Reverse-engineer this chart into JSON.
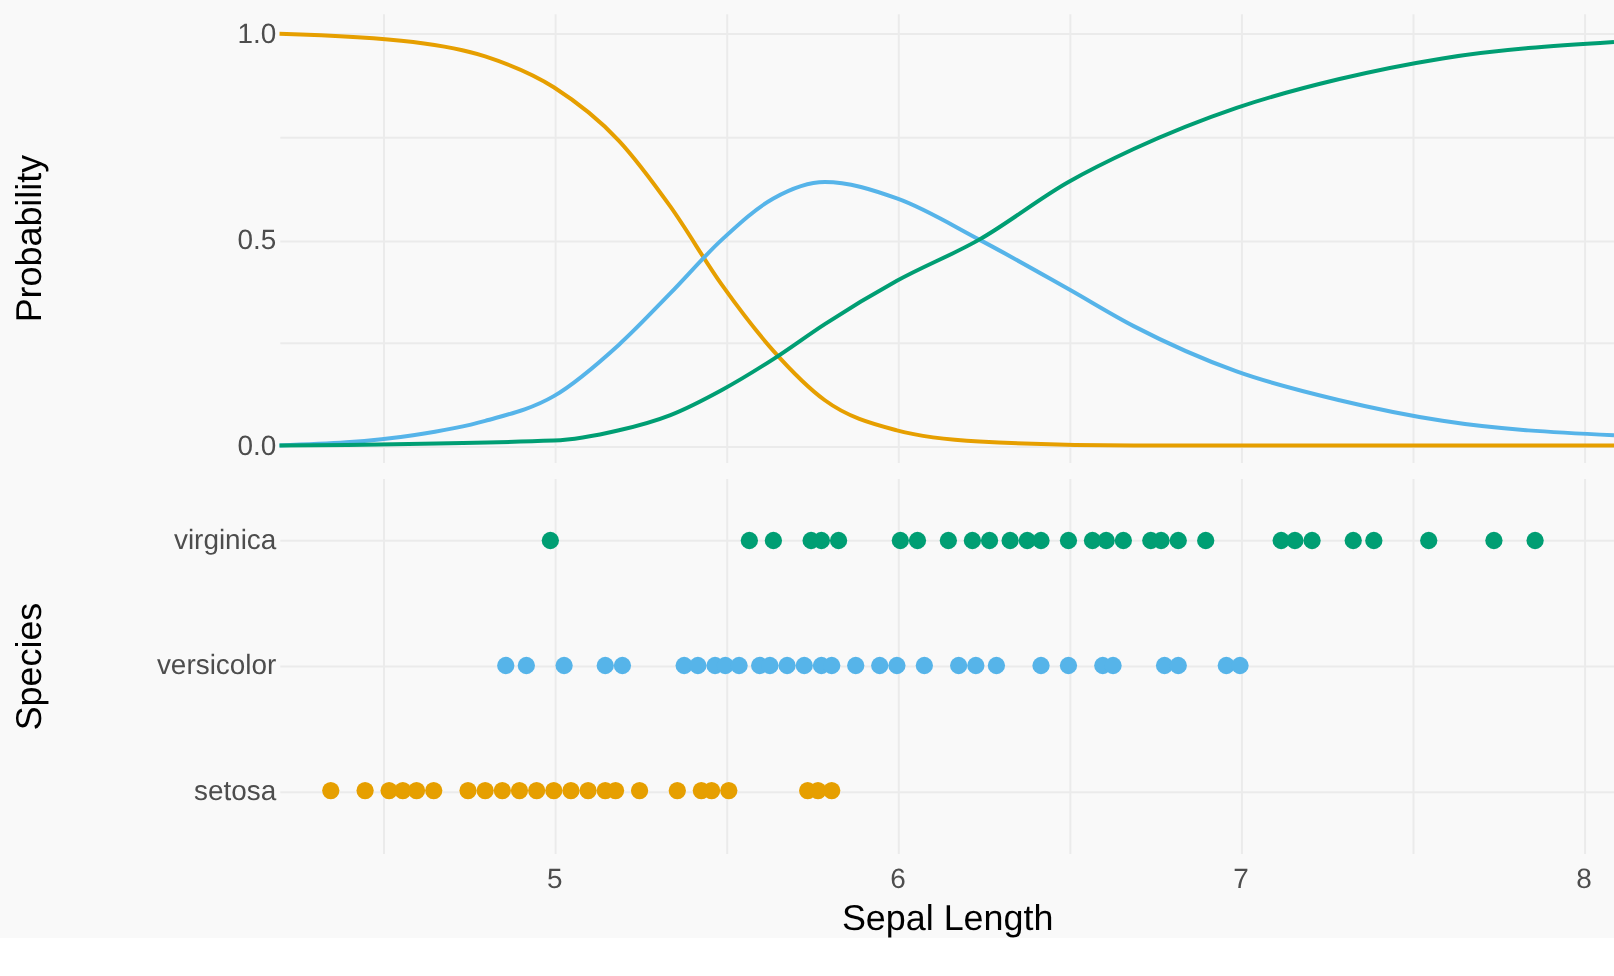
{
  "chart_data": [
    {
      "type": "line",
      "ylabel": "Probability",
      "xlim": [
        4.2,
        8.09
      ],
      "ylim": [
        -0.04,
        1.05
      ],
      "xticks": [
        {
          "value": 4.5,
          "label": null
        },
        5,
        {
          "value": 5.5,
          "label": null
        },
        6,
        {
          "value": 6.5,
          "label": null
        },
        7,
        {
          "value": 7.5,
          "label": null
        },
        8
      ],
      "yticks": [
        {
          "value": 0,
          "label": "0.0"
        },
        {
          "value": 0.25,
          "label": null
        },
        {
          "value": 0.5,
          "label": "0.5"
        },
        {
          "value": 0.75,
          "label": null
        },
        {
          "value": 1,
          "label": "1.0"
        }
      ],
      "tick_labels": "y",
      "grid": true,
      "marker": "none",
      "line_style": "solid",
      "series": [
        {
          "color": "#e69f00",
          "x": [
            4.2,
            4.59,
            4.8,
            5.0,
            5.19,
            5.34,
            5.49,
            5.64,
            5.79,
            6.0,
            6.24,
            6.69,
            8.09
          ],
          "values": [
            1.0,
            0.98,
            0.945,
            0.87,
            0.74,
            0.58,
            0.39,
            0.23,
            0.11,
            0.037,
            0.01,
            0,
            0
          ]
        },
        {
          "color": "#56b4e9",
          "x": [
            4.2,
            4.59,
            4.8,
            5.0,
            5.19,
            5.34,
            5.49,
            5.64,
            5.79,
            6.0,
            6.24,
            6.5,
            6.69,
            6.99,
            7.29,
            7.59,
            8.09
          ],
          "values": [
            0,
            0.025,
            0.06,
            0.12,
            0.245,
            0.37,
            0.5,
            0.6,
            0.64,
            0.6,
            0.5,
            0.38,
            0.29,
            0.18,
            0.11,
            0.06,
            0.025
          ]
        },
        {
          "color": "#009e73",
          "x": [
            4.2,
            5.0,
            5.19,
            5.34,
            5.49,
            5.64,
            5.79,
            6.0,
            6.24,
            6.5,
            6.69,
            6.99,
            7.29,
            7.59,
            8.09
          ],
          "values": [
            0,
            0.012,
            0.037,
            0.074,
            0.135,
            0.21,
            0.295,
            0.4,
            0.5,
            0.64,
            0.72,
            0.82,
            0.89,
            0.94,
            0.98
          ]
        }
      ]
    },
    {
      "type": "scatter",
      "orientation": "horizontal",
      "xlabel": "Sepal Length",
      "ylabel": "Species",
      "xlim": [
        4.2,
        8.09
      ],
      "xticks": [
        {
          "value": 4.5,
          "label": null
        },
        5,
        {
          "value": 5.5,
          "label": null
        },
        6,
        {
          "value": 6.5,
          "label": null
        },
        7,
        {
          "value": 7.5,
          "label": null
        },
        8
      ],
      "categories": [
        "virginica",
        "versicolor",
        "setosa"
      ],
      "grid": true,
      "marker": "circle",
      "series": [
        {
          "color": "#e69f00",
          "x": [
            "setosa",
            "setosa",
            "setosa",
            "setosa",
            "setosa",
            "setosa",
            "setosa",
            "setosa",
            "setosa",
            "setosa",
            "setosa",
            "setosa",
            "setosa",
            "setosa",
            "setosa",
            "setosa",
            "setosa",
            "setosa",
            "setosa",
            "setosa",
            "setosa",
            "setosa",
            "setosa",
            "setosa"
          ],
          "values": [
            4.35,
            4.45,
            4.52,
            4.56,
            4.6,
            4.65,
            4.75,
            4.8,
            4.85,
            4.9,
            4.95,
            5.0,
            5.05,
            5.1,
            5.15,
            5.18,
            5.25,
            5.36,
            5.43,
            5.46,
            5.51,
            5.74,
            5.77,
            5.81
          ]
        },
        {
          "color": "#56b4e9",
          "x": [
            "versicolor",
            "versicolor",
            "versicolor",
            "versicolor",
            "versicolor",
            "versicolor",
            "versicolor",
            "versicolor",
            "versicolor",
            "versicolor",
            "versicolor",
            "versicolor",
            "versicolor",
            "versicolor",
            "versicolor",
            "versicolor",
            "versicolor",
            "versicolor",
            "versicolor",
            "versicolor",
            "versicolor",
            "versicolor",
            "versicolor",
            "versicolor",
            "versicolor",
            "versicolor",
            "versicolor",
            "versicolor",
            "versicolor",
            "versicolor",
            "versicolor"
          ],
          "values": [
            4.86,
            4.92,
            5.03,
            5.15,
            5.2,
            5.38,
            5.42,
            5.47,
            5.5,
            5.54,
            5.6,
            5.63,
            5.68,
            5.73,
            5.78,
            5.81,
            5.88,
            5.95,
            6.0,
            6.08,
            6.18,
            6.23,
            6.29,
            6.42,
            6.5,
            6.6,
            6.63,
            6.78,
            6.82,
            6.96,
            7.0
          ]
        },
        {
          "color": "#009e73",
          "x": [
            "virginica",
            "virginica",
            "virginica",
            "virginica",
            "virginica",
            "virginica",
            "virginica",
            "virginica",
            "virginica",
            "virginica",
            "virginica",
            "virginica",
            "virginica",
            "virginica",
            "virginica",
            "virginica",
            "virginica",
            "virginica",
            "virginica",
            "virginica",
            "virginica",
            "virginica",
            "virginica",
            "virginica",
            "virginica",
            "virginica",
            "virginica",
            "virginica",
            "virginica",
            "virginica"
          ],
          "values": [
            4.99,
            5.57,
            5.64,
            5.75,
            5.78,
            5.83,
            6.01,
            6.06,
            6.15,
            6.22,
            6.27,
            6.33,
            6.38,
            6.42,
            6.5,
            6.57,
            6.61,
            6.66,
            6.74,
            6.77,
            6.82,
            6.9,
            7.12,
            7.16,
            7.21,
            7.33,
            7.39,
            7.55,
            7.74,
            7.86
          ]
        }
      ]
    }
  ]
}
